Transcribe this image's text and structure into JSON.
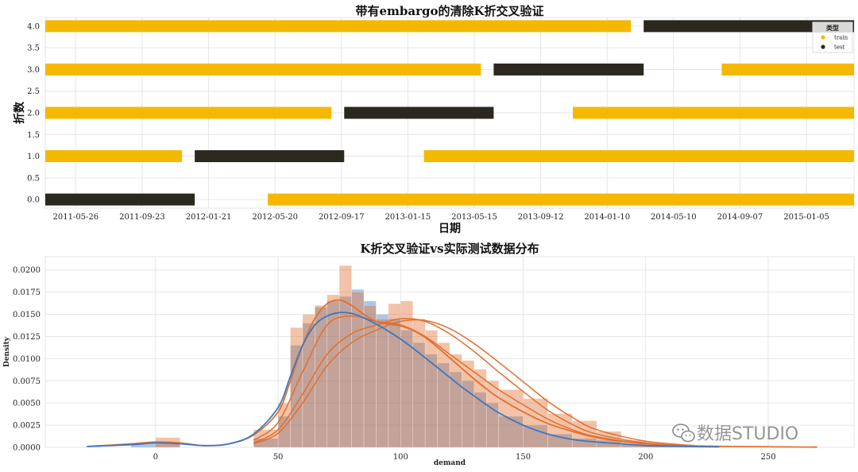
{
  "chart_data": [
    {
      "type": "gantt",
      "title": "带有embargo的清除K折交叉验证",
      "xlabel": "日期",
      "ylabel": "折数",
      "x_ticks": [
        "2011-05-26",
        "2011-09-23",
        "2012-01-21",
        "2012-05-20",
        "2012-09-17",
        "2013-01-15",
        "2013-05-15",
        "2013-09-12",
        "2014-01-10",
        "2014-05-10",
        "2014-09-07",
        "2015-01-05"
      ],
      "y_ticks": [
        "0.0",
        "0.5",
        "1.0",
        "1.5",
        "2.0",
        "2.5",
        "3.0",
        "3.5",
        "4.0"
      ],
      "xlim": [
        "2011-04-01",
        "2015-04-01"
      ],
      "ylim": [
        -0.2,
        4.2
      ],
      "grid": true,
      "legend": {
        "title": "类型",
        "position": "top-right",
        "entries": [
          "train",
          "test"
        ]
      },
      "colors": {
        "train": "#f5b800",
        "test": "#2b2820"
      },
      "segments": [
        {
          "fold": 0.0,
          "type": "test",
          "start": "2011-04-01",
          "end": "2011-12-27"
        },
        {
          "fold": 0.0,
          "type": "train",
          "start": "2012-05-07",
          "end": "2015-04-01"
        },
        {
          "fold": 1.0,
          "type": "train",
          "start": "2011-04-01",
          "end": "2011-12-04"
        },
        {
          "fold": 1.0,
          "type": "test",
          "start": "2011-12-27",
          "end": "2012-09-22"
        },
        {
          "fold": 1.0,
          "type": "train",
          "start": "2013-02-13",
          "end": "2015-04-01"
        },
        {
          "fold": 2.0,
          "type": "train",
          "start": "2011-04-01",
          "end": "2012-08-30"
        },
        {
          "fold": 2.0,
          "type": "test",
          "start": "2012-09-22",
          "end": "2013-06-19"
        },
        {
          "fold": 2.0,
          "type": "train",
          "start": "2013-11-09",
          "end": "2015-04-01"
        },
        {
          "fold": 3.0,
          "type": "train",
          "start": "2011-04-01",
          "end": "2013-05-27"
        },
        {
          "fold": 3.0,
          "type": "test",
          "start": "2013-06-19",
          "end": "2014-03-17"
        },
        {
          "fold": 3.0,
          "type": "train",
          "start": "2014-08-05",
          "end": "2015-04-01"
        },
        {
          "fold": 4.0,
          "type": "train",
          "start": "2011-04-01",
          "end": "2014-02-22"
        },
        {
          "fold": 4.0,
          "type": "test",
          "start": "2014-03-17",
          "end": "2015-04-01"
        }
      ]
    },
    {
      "type": "histogram-kde",
      "title": "K折交叉验证vs实际测试数据分布",
      "xlabel": "demand",
      "ylabel": "Density",
      "x_ticks": [
        0,
        50,
        100,
        150,
        200,
        250
      ],
      "y_ticks": [
        "0.0000",
        "0.0025",
        "0.0050",
        "0.0075",
        "0.0100",
        "0.0125",
        "0.0150",
        "0.0175",
        "0.0200"
      ],
      "xlim": [
        -45,
        285
      ],
      "ylim": [
        0,
        0.0215
      ],
      "grid": true,
      "series": [
        {
          "color": "#3b78c4",
          "bins": [
            [
              -10,
              10,
              0.0005
            ],
            [
              40,
              50,
              0.001
            ],
            [
              50,
              55,
              0.0035
            ],
            [
              55,
              60,
              0.0115
            ],
            [
              60,
              65,
              0.014
            ],
            [
              65,
              70,
              0.0158
            ],
            [
              70,
              75,
              0.0165
            ],
            [
              75,
              80,
              0.017
            ],
            [
              80,
              85,
              0.0178
            ],
            [
              85,
              90,
              0.0165
            ],
            [
              90,
              95,
              0.015
            ],
            [
              95,
              100,
              0.0145
            ],
            [
              100,
              105,
              0.0132
            ],
            [
              105,
              110,
              0.0118
            ],
            [
              110,
              115,
              0.0105
            ],
            [
              115,
              120,
              0.0095
            ],
            [
              120,
              125,
              0.0085
            ],
            [
              125,
              130,
              0.0075
            ],
            [
              130,
              135,
              0.0062
            ],
            [
              135,
              140,
              0.005
            ],
            [
              140,
              150,
              0.0035
            ],
            [
              150,
              160,
              0.0025
            ],
            [
              160,
              170,
              0.0015
            ],
            [
              170,
              180,
              0.001
            ],
            [
              180,
              190,
              0.0008
            ],
            [
              190,
              210,
              0.0004
            ]
          ],
          "kde_x": [
            -28,
            -10,
            0,
            10,
            20,
            30,
            40,
            50,
            55,
            60,
            65,
            70,
            75,
            80,
            85,
            90,
            95,
            100,
            105,
            110,
            115,
            120,
            125,
            130,
            135,
            140,
            150,
            160,
            170,
            180,
            190,
            200,
            215,
            230
          ],
          "kde_y": [
            0.0001,
            0.0003,
            0.0005,
            0.0004,
            0.0002,
            0.0004,
            0.0015,
            0.0045,
            0.008,
            0.0115,
            0.0138,
            0.0148,
            0.0152,
            0.0151,
            0.0146,
            0.0139,
            0.0131,
            0.0122,
            0.0112,
            0.0101,
            0.009,
            0.0079,
            0.0068,
            0.0058,
            0.0048,
            0.0039,
            0.0025,
            0.0015,
            0.0009,
            0.0006,
            0.0004,
            0.0002,
            0.0001,
            5e-05
          ]
        },
        {
          "color": "#e07030",
          "bins": [
            [
              0,
              10,
              0.0011
            ],
            [
              40,
              50,
              0.002
            ],
            [
              50,
              55,
              0.005
            ],
            [
              55,
              60,
              0.0135
            ],
            [
              60,
              65,
              0.015
            ],
            [
              65,
              70,
              0.016
            ],
            [
              70,
              75,
              0.0172
            ],
            [
              75,
              80,
              0.0205
            ],
            [
              80,
              85,
              0.0175
            ],
            [
              85,
              90,
              0.016
            ],
            [
              90,
              95,
              0.0145
            ],
            [
              95,
              100,
              0.0162
            ],
            [
              100,
              105,
              0.0165
            ],
            [
              105,
              110,
              0.0145
            ],
            [
              110,
              115,
              0.0132
            ],
            [
              115,
              120,
              0.0118
            ],
            [
              120,
              125,
              0.0105
            ],
            [
              125,
              130,
              0.0098
            ],
            [
              130,
              135,
              0.0088
            ],
            [
              135,
              140,
              0.0075
            ],
            [
              140,
              150,
              0.0065
            ],
            [
              150,
              160,
              0.0055
            ],
            [
              160,
              170,
              0.0038
            ],
            [
              170,
              180,
              0.003
            ],
            [
              180,
              190,
              0.0018
            ],
            [
              190,
              200,
              0.0008
            ],
            [
              200,
              220,
              0.0003
            ]
          ],
          "kde_x": [
            -28,
            -10,
            0,
            10,
            20,
            30,
            40,
            50,
            55,
            60,
            65,
            70,
            75,
            80,
            85,
            90,
            95,
            100,
            105,
            110,
            115,
            120,
            125,
            130,
            135,
            140,
            150,
            160,
            170,
            180,
            190,
            200,
            215,
            235,
            270
          ],
          "kde_y": [
            0.0001,
            0.0004,
            0.0006,
            0.0005,
            0.0002,
            0.0004,
            0.0014,
            0.004,
            0.0075,
            0.0115,
            0.0145,
            0.0162,
            0.0166,
            0.016,
            0.015,
            0.0142,
            0.0139,
            0.0137,
            0.0132,
            0.0124,
            0.0113,
            0.0101,
            0.0089,
            0.0077,
            0.0066,
            0.0056,
            0.004,
            0.0027,
            0.0018,
            0.0011,
            0.0007,
            0.0004,
            0.0002,
            0.0001,
            3e-05
          ]
        }
      ],
      "extra_kde": [
        {
          "color": "#e07030",
          "x": [
            40,
            50,
            60,
            70,
            80,
            90,
            100,
            110,
            120,
            130,
            140,
            150,
            160,
            170,
            180,
            200,
            220
          ],
          "y": [
            0.0008,
            0.0028,
            0.0085,
            0.0138,
            0.0148,
            0.0142,
            0.0138,
            0.0125,
            0.0105,
            0.0085,
            0.0065,
            0.0048,
            0.0032,
            0.002,
            0.0012,
            0.0004,
            0.0001
          ]
        },
        {
          "color": "#e07030",
          "x": [
            40,
            50,
            60,
            70,
            80,
            90,
            100,
            110,
            120,
            130,
            140,
            150,
            160,
            170,
            180,
            200,
            220
          ],
          "y": [
            0.0005,
            0.002,
            0.006,
            0.0105,
            0.0128,
            0.0138,
            0.0145,
            0.0142,
            0.0128,
            0.0108,
            0.0085,
            0.0063,
            0.0042,
            0.0026,
            0.0015,
            0.0005,
            0.0001
          ]
        },
        {
          "color": "#e07030",
          "x": [
            40,
            50,
            60,
            70,
            80,
            90,
            100,
            110,
            120,
            130,
            140,
            150,
            160,
            170,
            180,
            200,
            220
          ],
          "y": [
            0.0004,
            0.0016,
            0.005,
            0.0092,
            0.0118,
            0.0132,
            0.0142,
            0.0143,
            0.0134,
            0.0117,
            0.0096,
            0.0074,
            0.0052,
            0.0034,
            0.002,
            0.0007,
            0.0002
          ]
        }
      ]
    }
  ],
  "watermark": {
    "text": "数据STUDIO",
    "icon": "wechat-icon"
  }
}
